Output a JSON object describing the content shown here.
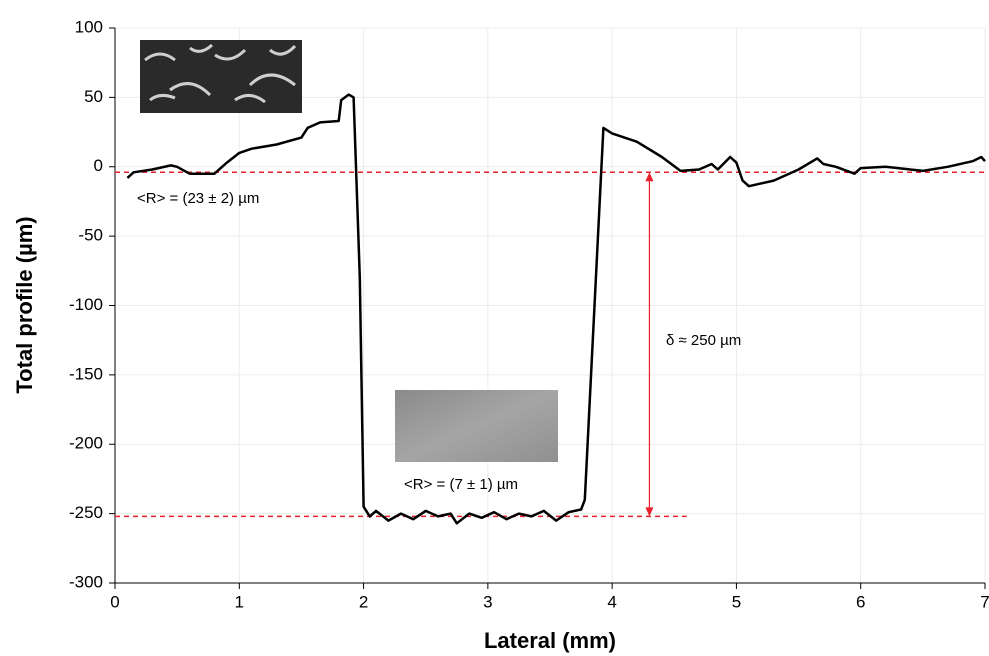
{
  "chart_data": {
    "type": "line",
    "x_label": "Lateral (mm)",
    "y_label": "Total profile (µm)",
    "x": [
      0.1,
      0.15,
      0.3,
      0.45,
      0.5,
      0.6,
      0.8,
      0.9,
      1.0,
      1.1,
      1.3,
      1.5,
      1.55,
      1.65,
      1.8,
      1.82,
      1.88,
      1.92,
      1.97,
      2.0,
      2.05,
      2.1,
      2.2,
      2.3,
      2.4,
      2.5,
      2.6,
      2.7,
      2.75,
      2.85,
      2.95,
      3.05,
      3.15,
      3.25,
      3.35,
      3.45,
      3.55,
      3.65,
      3.75,
      3.78,
      3.93,
      4.0,
      4.2,
      4.4,
      4.55,
      4.7,
      4.8,
      4.85,
      4.95,
      5.0,
      5.05,
      5.1,
      5.3,
      5.5,
      5.65,
      5.7,
      5.8,
      5.95,
      6.0,
      6.2,
      6.5,
      6.7,
      6.9,
      6.97,
      7.0
    ],
    "values": [
      -8,
      -4,
      -2,
      1,
      0,
      -5,
      -5,
      3,
      10,
      13,
      16,
      21,
      28,
      32,
      33,
      48,
      52,
      50,
      -80,
      -245,
      -252,
      -248,
      -255,
      -250,
      -254,
      -248,
      -252,
      -250,
      -257,
      -250,
      -253,
      -249,
      -254,
      -250,
      -252,
      -248,
      -255,
      -249,
      -247,
      -240,
      28,
      24,
      18,
      7,
      -3,
      -2,
      2,
      -2,
      7,
      3,
      -10,
      -14,
      -10,
      -2,
      6,
      2,
      0,
      -5,
      -1,
      0,
      -3,
      0,
      4,
      7,
      4
    ],
    "color": "#000000",
    "xlim": [
      0,
      7
    ],
    "xticks": [
      0,
      1,
      2,
      3,
      4,
      5,
      6,
      7
    ],
    "ylim": [
      -300,
      100
    ],
    "yticks": [
      -300,
      -250,
      -200,
      -150,
      -100,
      -50,
      0,
      50,
      100
    ],
    "grid": true,
    "reference_lines": [
      {
        "y": -4,
        "x": [
          0,
          7
        ]
      },
      {
        "y": -252,
        "x": [
          0,
          4.6
        ]
      }
    ],
    "reference_color": "#e8212a",
    "arrow": {
      "x": 4.3,
      "y": [
        -4,
        -252
      ]
    },
    "annotations": [
      "<R> = (23 ± 2) µm",
      "<R> = (7 ± 1) µm",
      "δ ≈ 250 µm"
    ]
  }
}
